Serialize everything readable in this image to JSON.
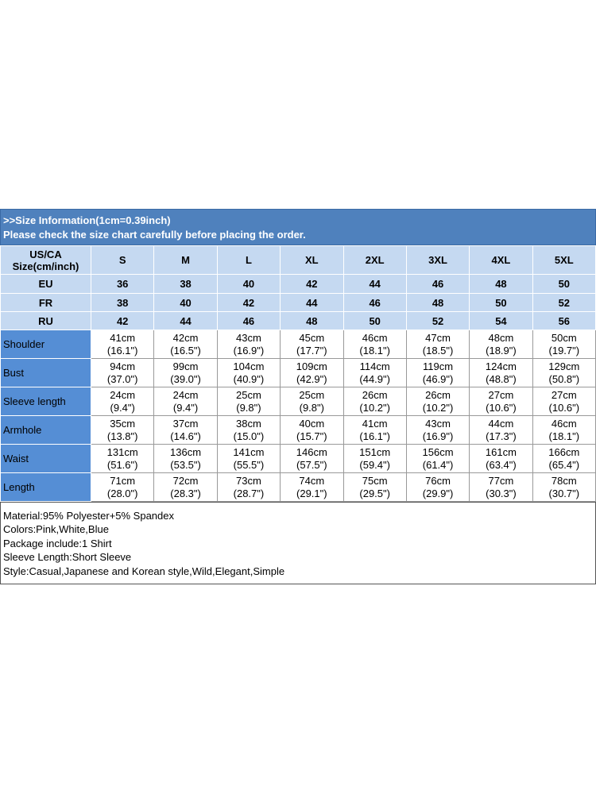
{
  "header": {
    "line1": ">>Size Information(1cm=0.39inch)",
    "line2": "Please check the size chart carefully before placing the order."
  },
  "table": {
    "size_rows": [
      {
        "label": [
          "US/CA",
          "Size(cm/inch)"
        ],
        "values": [
          "S",
          "M",
          "L",
          "XL",
          "2XL",
          "3XL",
          "4XL",
          "5XL"
        ]
      },
      {
        "label": [
          "EU"
        ],
        "values": [
          "36",
          "38",
          "40",
          "42",
          "44",
          "46",
          "48",
          "50"
        ]
      },
      {
        "label": [
          "FR"
        ],
        "values": [
          "38",
          "40",
          "42",
          "44",
          "46",
          "48",
          "50",
          "52"
        ]
      },
      {
        "label": [
          "RU"
        ],
        "values": [
          "42",
          "44",
          "46",
          "48",
          "50",
          "52",
          "54",
          "56"
        ]
      }
    ],
    "rows": [
      {
        "label": "Shoulder",
        "cm": [
          "41cm",
          "42cm",
          "43cm",
          "45cm",
          "46cm",
          "47cm",
          "48cm",
          "50cm"
        ],
        "inch": [
          "(16.1\")",
          "(16.5\")",
          "(16.9\")",
          "(17.7\")",
          "(18.1\")",
          "(18.5\")",
          "(18.9\")",
          "(19.7\")"
        ]
      },
      {
        "label": "Bust",
        "cm": [
          "94cm",
          "99cm",
          "104cm",
          "109cm",
          "114cm",
          "119cm",
          "124cm",
          "129cm"
        ],
        "inch": [
          "(37.0\")",
          "(39.0\")",
          "(40.9\")",
          "(42.9\")",
          "(44.9\")",
          "(46.9\")",
          "(48.8\")",
          "(50.8\")"
        ]
      },
      {
        "label": "Sleeve length",
        "cm": [
          "24cm",
          "24cm",
          "25cm",
          "25cm",
          "26cm",
          "26cm",
          "27cm",
          "27cm"
        ],
        "inch": [
          "(9.4\")",
          "(9.4\")",
          "(9.8\")",
          "(9.8\")",
          "(10.2\")",
          "(10.2\")",
          "(10.6\")",
          "(10.6\")"
        ]
      },
      {
        "label": "Armhole",
        "cm": [
          "35cm",
          "37cm",
          "38cm",
          "40cm",
          "41cm",
          "43cm",
          "44cm",
          "46cm"
        ],
        "inch": [
          "(13.8\")",
          "(14.6\")",
          "(15.0\")",
          "(15.7\")",
          "(16.1\")",
          "(16.9\")",
          "(17.3\")",
          "(18.1\")"
        ]
      },
      {
        "label": "Waist",
        "cm": [
          "131cm",
          "136cm",
          "141cm",
          "146cm",
          "151cm",
          "156cm",
          "161cm",
          "166cm"
        ],
        "inch": [
          "(51.6\")",
          "(53.5\")",
          "(55.5\")",
          "(57.5\")",
          "(59.4\")",
          "(61.4\")",
          "(63.4\")",
          "(65.4\")"
        ]
      },
      {
        "label": "Length",
        "cm": [
          "71cm",
          "72cm",
          "73cm",
          "74cm",
          "75cm",
          "76cm",
          "77cm",
          "78cm"
        ],
        "inch": [
          "(28.0\")",
          "(28.3\")",
          "(28.7\")",
          "(29.1\")",
          "(29.5\")",
          "(29.9\")",
          "(30.3\")",
          "(30.7\")"
        ]
      }
    ]
  },
  "notes": [
    "Material:95% Polyester+5% Spandex",
    "Colors:Pink,White,Blue",
    "Package include:1 Shirt",
    "Sleeve Length:Short Sleeve",
    "Style:Casual,Japanese and Korean style,Wild,Elegant,Simple"
  ]
}
